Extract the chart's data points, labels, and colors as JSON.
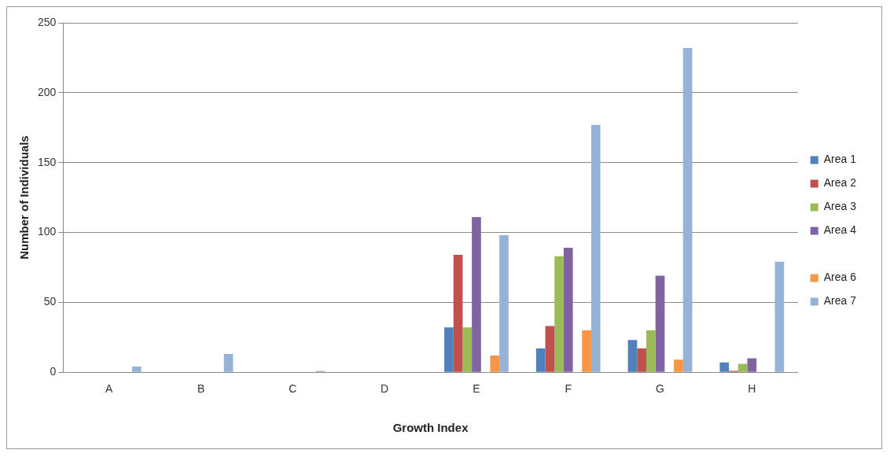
{
  "chart_data": {
    "type": "bar",
    "xlabel": "Growth Index",
    "ylabel": "Number of Individuals",
    "categories": [
      "A",
      "B",
      "C",
      "D",
      "E",
      "F",
      "G",
      "H"
    ],
    "series": [
      {
        "name": "Area 1",
        "color": "#4f81bd",
        "values": [
          0,
          0,
          0,
          0,
          32,
          17,
          23,
          7
        ]
      },
      {
        "name": "Area 2",
        "color": "#c0504d",
        "values": [
          0,
          0,
          0,
          0,
          84,
          33,
          17,
          1
        ]
      },
      {
        "name": "Area 3",
        "color": "#9bbb59",
        "values": [
          0,
          0,
          0,
          0,
          32,
          83,
          30,
          6
        ]
      },
      {
        "name": "Area 4",
        "color": "#8064a2",
        "values": [
          0,
          0,
          0,
          0,
          111,
          89,
          69,
          10
        ]
      },
      {
        "color": "#ffffff",
        "values": [
          null,
          null,
          null,
          null,
          null,
          null,
          null,
          null
        ]
      },
      {
        "name": "Area 6",
        "color": "#f79646",
        "values": [
          0,
          0,
          0,
          0,
          12,
          30,
          9,
          0
        ]
      },
      {
        "name": "Area 7",
        "color": "#95b3d7",
        "values": [
          4,
          13,
          1,
          0,
          98,
          177,
          232,
          79
        ]
      }
    ],
    "ylim": [
      0,
      250
    ],
    "yticks": [
      0,
      50,
      100,
      150,
      200,
      250
    ],
    "grid": "y",
    "legend": "right"
  }
}
